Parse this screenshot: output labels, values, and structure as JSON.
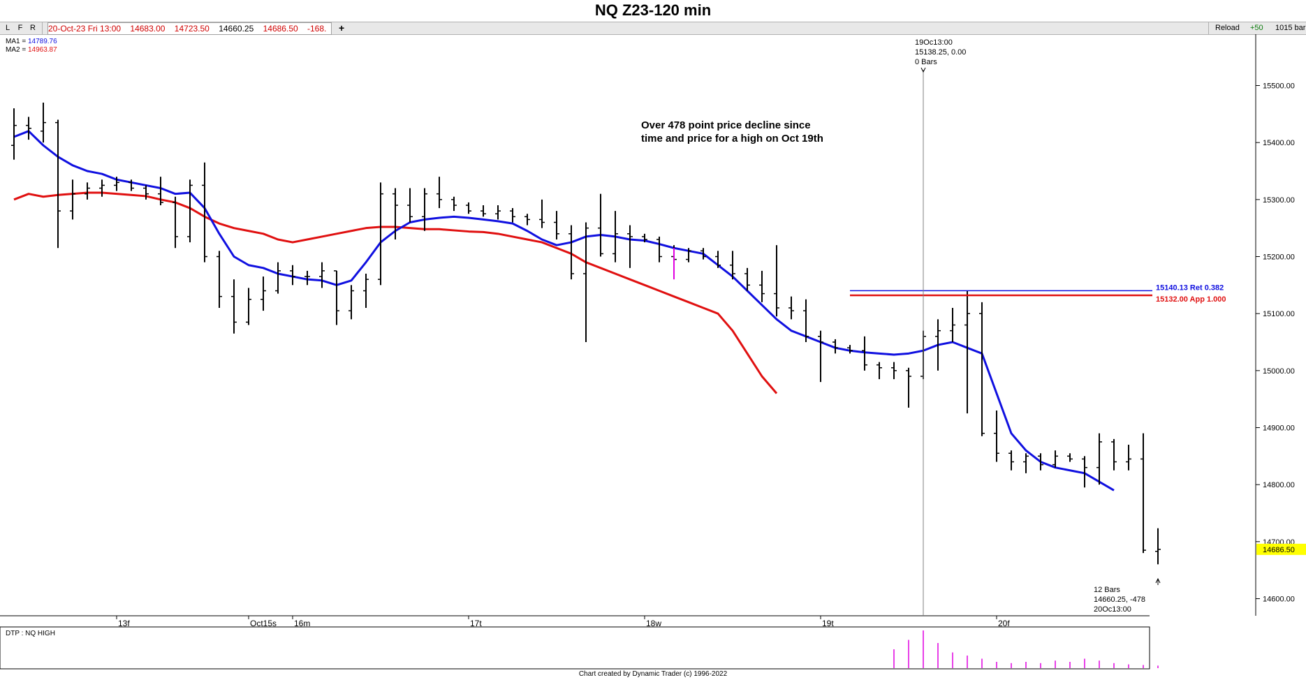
{
  "title": "NQ Z23-120 min",
  "toolbar": {
    "buttons": [
      "L",
      "F",
      "R"
    ],
    "info": [
      "20-Oct-23 Fri 13:00",
      "14683.00",
      "14723.50",
      "14660.25",
      "14686.50",
      "-168."
    ],
    "info_colors": [
      "#d00000",
      "#d00000",
      "#d00000",
      "#000000",
      "#d00000",
      "#d00000"
    ],
    "plus": "+",
    "reload": "Reload",
    "step": "+50",
    "bars_label": "1015 bar"
  },
  "legend": [
    {
      "label": "MA1 = ",
      "value": "14789.76",
      "color": "#1010e0"
    },
    {
      "label": "MA2 = ",
      "value": "14963.87",
      "color": "#e01010"
    }
  ],
  "lower_panel_label": "DTP : NQ HIGH",
  "annotation": {
    "line1": "Over 478 point price decline since",
    "line2": "time and price for a high on Oct 19th"
  },
  "marker_top": [
    "19Oc13:00",
    "15138.25, 0.00",
    "0 Bars"
  ],
  "marker_bottom": [
    "12 Bars",
    "14660.25, -478",
    "20Oc13:00"
  ],
  "footer": "Chart created by Dynamic Trader  (c) 1996-2022",
  "colors": {
    "ma1": "#1010e0",
    "ma2": "#e01010",
    "last_price_bg": "#ffff00",
    "projection": "#e000e0"
  },
  "chart_data": {
    "type": "ohlc",
    "y_ticks": [
      "15500.00",
      "15400.00",
      "15300.00",
      "15200.00",
      "15100.00",
      "15000.00",
      "14900.00",
      "14800.00",
      "14700.00",
      "14600.00"
    ],
    "ylim": [
      14570,
      15590
    ],
    "x_labels": [
      {
        "text": "13f",
        "bar": 7
      },
      {
        "text": "Oct15s",
        "bar": 16
      },
      {
        "text": "16m",
        "bar": 19
      },
      {
        "text": "17t",
        "bar": 31
      },
      {
        "text": "18w",
        "bar": 43
      },
      {
        "text": "19t",
        "bar": 55
      },
      {
        "text": "20f",
        "bar": 67
      }
    ],
    "bars": [
      {
        "o": 15395,
        "h": 15460,
        "l": 15370,
        "c": 15430
      },
      {
        "o": 15430,
        "h": 15445,
        "l": 15405,
        "c": 15425
      },
      {
        "o": 15420,
        "h": 15470,
        "l": 15400,
        "c": 15435
      },
      {
        "o": 15435,
        "h": 15440,
        "l": 15215,
        "c": 15280
      },
      {
        "o": 15280,
        "h": 15335,
        "l": 15265,
        "c": 15310
      },
      {
        "o": 15310,
        "h": 15330,
        "l": 15300,
        "c": 15320
      },
      {
        "o": 15320,
        "h": 15335,
        "l": 15305,
        "c": 15325
      },
      {
        "o": 15325,
        "h": 15340,
        "l": 15315,
        "c": 15330
      },
      {
        "o": 15330,
        "h": 15335,
        "l": 15315,
        "c": 15320
      },
      {
        "o": 15320,
        "h": 15325,
        "l": 15300,
        "c": 15310
      },
      {
        "o": 15310,
        "h": 15340,
        "l": 15290,
        "c": 15295
      },
      {
        "o": 15295,
        "h": 15305,
        "l": 15215,
        "c": 15235
      },
      {
        "o": 15235,
        "h": 15335,
        "l": 15225,
        "c": 15325
      },
      {
        "o": 15325,
        "h": 15365,
        "l": 15190,
        "c": 15200
      },
      {
        "o": 15200,
        "h": 15210,
        "l": 15110,
        "c": 15130
      },
      {
        "o": 15130,
        "h": 15160,
        "l": 15065,
        "c": 15085
      },
      {
        "o": 15085,
        "h": 15145,
        "l": 15080,
        "c": 15125
      },
      {
        "o": 15125,
        "h": 15165,
        "l": 15105,
        "c": 15140
      },
      {
        "o": 15140,
        "h": 15190,
        "l": 15135,
        "c": 15175
      },
      {
        "o": 15175,
        "h": 15185,
        "l": 15150,
        "c": 15165
      },
      {
        "o": 15165,
        "h": 15175,
        "l": 15150,
        "c": 15165
      },
      {
        "o": 15165,
        "h": 15190,
        "l": 15145,
        "c": 15175
      },
      {
        "o": 15175,
        "h": 15175,
        "l": 15080,
        "c": 15105
      },
      {
        "o": 15105,
        "h": 15150,
        "l": 15090,
        "c": 15140
      },
      {
        "o": 15140,
        "h": 15170,
        "l": 15110,
        "c": 15160
      },
      {
        "o": 15160,
        "h": 15330,
        "l": 15150,
        "c": 15310
      },
      {
        "o": 15310,
        "h": 15320,
        "l": 15230,
        "c": 15290
      },
      {
        "o": 15290,
        "h": 15320,
        "l": 15260,
        "c": 15270
      },
      {
        "o": 15270,
        "h": 15320,
        "l": 15245,
        "c": 15310
      },
      {
        "o": 15310,
        "h": 15340,
        "l": 15285,
        "c": 15300
      },
      {
        "o": 15300,
        "h": 15305,
        "l": 15280,
        "c": 15290
      },
      {
        "o": 15290,
        "h": 15295,
        "l": 15275,
        "c": 15280
      },
      {
        "o": 15280,
        "h": 15290,
        "l": 15270,
        "c": 15275
      },
      {
        "o": 15275,
        "h": 15290,
        "l": 15265,
        "c": 15280
      },
      {
        "o": 15280,
        "h": 15285,
        "l": 15260,
        "c": 15270
      },
      {
        "o": 15270,
        "h": 15275,
        "l": 15255,
        "c": 15265
      },
      {
        "o": 15265,
        "h": 15300,
        "l": 15250,
        "c": 15260
      },
      {
        "o": 15260,
        "h": 15280,
        "l": 15230,
        "c": 15240
      },
      {
        "o": 15240,
        "h": 15255,
        "l": 15160,
        "c": 15170
      },
      {
        "o": 15170,
        "h": 15260,
        "l": 15050,
        "c": 15250
      },
      {
        "o": 15250,
        "h": 15310,
        "l": 15200,
        "c": 15205
      },
      {
        "o": 15205,
        "h": 15280,
        "l": 15190,
        "c": 15240
      },
      {
        "o": 15240,
        "h": 15255,
        "l": 15180,
        "c": 15235
      },
      {
        "o": 15235,
        "h": 15240,
        "l": 15225,
        "c": 15230
      },
      {
        "o": 15230,
        "h": 15235,
        "l": 15190,
        "c": 15200
      },
      {
        "o": 15200,
        "h": 15220,
        "l": 15185,
        "c": 15195
      },
      {
        "o": 15195,
        "h": 15215,
        "l": 15190,
        "c": 15210
      },
      {
        "o": 15210,
        "h": 15215,
        "l": 15195,
        "c": 15200
      },
      {
        "o": 15200,
        "h": 15210,
        "l": 15180,
        "c": 15185
      },
      {
        "o": 15185,
        "h": 15210,
        "l": 15160,
        "c": 15170
      },
      {
        "o": 15170,
        "h": 15180,
        "l": 15140,
        "c": 15150
      },
      {
        "o": 15150,
        "h": 15175,
        "l": 15120,
        "c": 15135
      },
      {
        "o": 15135,
        "h": 15220,
        "l": 15095,
        "c": 15110
      },
      {
        "o": 15110,
        "h": 15130,
        "l": 15090,
        "c": 15105
      },
      {
        "o": 15105,
        "h": 15125,
        "l": 15050,
        "c": 15060
      },
      {
        "o": 15060,
        "h": 15070,
        "l": 14980,
        "c": 15050
      },
      {
        "o": 15050,
        "h": 15055,
        "l": 15030,
        "c": 15040
      },
      {
        "o": 15040,
        "h": 15045,
        "l": 15030,
        "c": 15035
      },
      {
        "o": 15035,
        "h": 15060,
        "l": 15000,
        "c": 15010
      },
      {
        "o": 15010,
        "h": 15015,
        "l": 14985,
        "c": 15005
      },
      {
        "o": 15005,
        "h": 15015,
        "l": 14985,
        "c": 15000
      },
      {
        "o": 15000,
        "h": 15005,
        "l": 14935,
        "c": 14990
      },
      {
        "o": 14990,
        "h": 15070,
        "l": 14985,
        "c": 15060
      },
      {
        "o": 15060,
        "h": 15090,
        "l": 15000,
        "c": 15070
      },
      {
        "o": 15070,
        "h": 15110,
        "l": 15050,
        "c": 15080
      },
      {
        "o": 15080,
        "h": 15140,
        "l": 14925,
        "c": 15100
      },
      {
        "o": 15100,
        "h": 15120,
        "l": 14885,
        "c": 14890
      },
      {
        "o": 14890,
        "h": 14930,
        "l": 14840,
        "c": 14855
      },
      {
        "o": 14855,
        "h": 14860,
        "l": 14825,
        "c": 14840
      },
      {
        "o": 14840,
        "h": 14855,
        "l": 14820,
        "c": 14850
      },
      {
        "o": 14850,
        "h": 14855,
        "l": 14825,
        "c": 14835
      },
      {
        "o": 14835,
        "h": 14860,
        "l": 14830,
        "c": 14850
      },
      {
        "o": 14850,
        "h": 14855,
        "l": 14840,
        "c": 14845
      },
      {
        "o": 14845,
        "h": 14850,
        "l": 14795,
        "c": 14830
      },
      {
        "o": 14830,
        "h": 14890,
        "l": 14800,
        "c": 14875
      },
      {
        "o": 14875,
        "h": 14880,
        "l": 14825,
        "c": 14840
      },
      {
        "o": 14840,
        "h": 14870,
        "l": 14825,
        "c": 14845
      },
      {
        "o": 14845,
        "h": 14890,
        "l": 14680,
        "c": 14685
      },
      {
        "o": 14683,
        "h": 14723.5,
        "l": 14660.25,
        "c": 14686.5
      }
    ],
    "ma1": [
      15410,
      15420,
      15395,
      15375,
      15360,
      15350,
      15345,
      15335,
      15330,
      15325,
      15320,
      15310,
      15312,
      15285,
      15240,
      15200,
      15185,
      15180,
      15170,
      15165,
      15160,
      15158,
      15150,
      15158,
      15190,
      15225,
      15245,
      15260,
      15265,
      15268,
      15270,
      15268,
      15265,
      15262,
      15258,
      15245,
      15230,
      15220,
      15225,
      15235,
      15238,
      15235,
      15230,
      15228,
      15222,
      15215,
      15210,
      15205,
      15185,
      15165,
      15140,
      15115,
      15090,
      15070,
      15060,
      15050,
      15040,
      15035,
      15032,
      15030,
      15028,
      15030,
      15035,
      15045,
      15050,
      15040,
      15030,
      14960,
      14890,
      14860,
      14840,
      14830,
      14825,
      14820,
      14805,
      14790
    ],
    "ma2": [
      15300,
      15310,
      15305,
      15308,
      15310,
      15312,
      15312,
      15310,
      15308,
      15306,
      15300,
      15295,
      15285,
      15270,
      15258,
      15250,
      15245,
      15240,
      15230,
      15225,
      15230,
      15235,
      15240,
      15245,
      15250,
      15252,
      15252,
      15250,
      15248,
      15248,
      15246,
      15244,
      15243,
      15240,
      15235,
      15230,
      15225,
      15215,
      15205,
      15190,
      15180,
      15170,
      15160,
      15150,
      15140,
      15130,
      15120,
      15110,
      15100,
      15070,
      15030,
      14990,
      14960
    ],
    "ma2_start_bar": 0,
    "overlay_lines": [
      {
        "label": "15140.13 Ret 0.382",
        "value": 15140.13,
        "color": "#1010e0",
        "from_bar": 57
      },
      {
        "label": "15132.00 App 1.000",
        "value": 15132.0,
        "color": "#e01010",
        "from_bar": 57
      }
    ],
    "vertical_marker_bar": 62,
    "last_price": "14686.50",
    "last_price_value": 14686.5,
    "projection_bar": {
      "bar": 45,
      "h": 15215,
      "l": 15160
    },
    "lower_panel": [
      0,
      0,
      0,
      0,
      0,
      0,
      0,
      0,
      0,
      0,
      0,
      0,
      0,
      0,
      0,
      0,
      0,
      0,
      0,
      0,
      0,
      0,
      0,
      0,
      0,
      0,
      0,
      0,
      0,
      0,
      0,
      0,
      0,
      0,
      0,
      0,
      0,
      0,
      0,
      0,
      0,
      0,
      0,
      0,
      0,
      0,
      0,
      0,
      0,
      0,
      0,
      0,
      0,
      0,
      0,
      0,
      0,
      0,
      0,
      0,
      30,
      45,
      60,
      40,
      25,
      20,
      15,
      10,
      8,
      10,
      8,
      12,
      10,
      15,
      12,
      8,
      6,
      5,
      4
    ]
  }
}
